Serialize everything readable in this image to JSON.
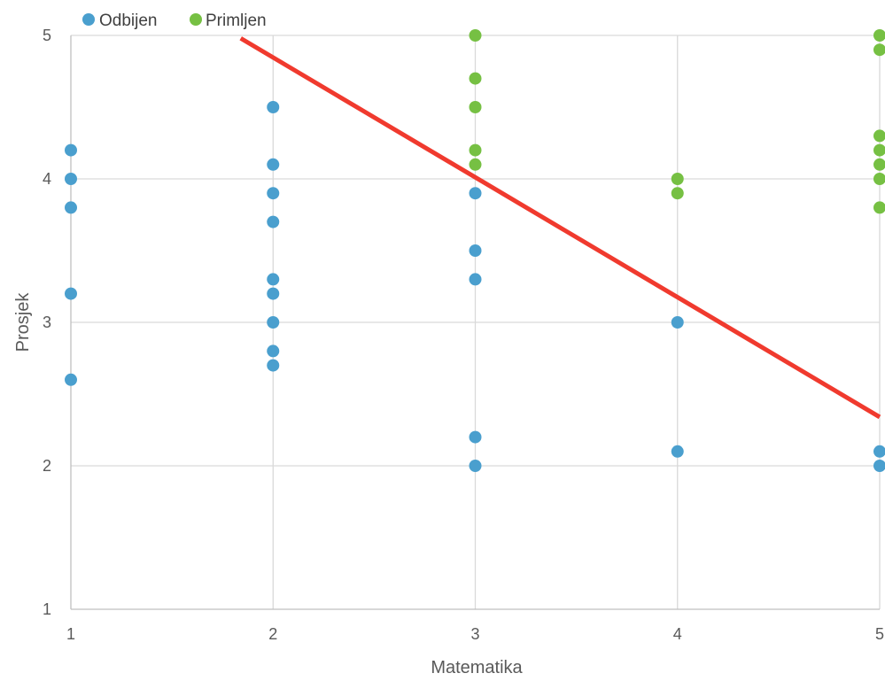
{
  "chart_data": {
    "type": "scatter",
    "xlabel": "Matematika",
    "ylabel": "Prosjek",
    "xlim": [
      1,
      5
    ],
    "ylim": [
      1,
      5
    ],
    "x_ticks": [
      "1",
      "2",
      "3",
      "4",
      "5"
    ],
    "y_ticks": [
      "1",
      "2",
      "3",
      "4",
      "5"
    ],
    "grid": true,
    "legend_position": "top-left",
    "colors": {
      "Odbijen": "#4a9fce",
      "Primljen": "#76c043",
      "line": "#f03a2e"
    },
    "series": [
      {
        "name": "Odbijen",
        "points": [
          [
            1,
            4.2
          ],
          [
            1,
            4.0
          ],
          [
            1,
            3.8
          ],
          [
            1,
            3.2
          ],
          [
            1,
            2.6
          ],
          [
            2,
            4.5
          ],
          [
            2,
            4.1
          ],
          [
            2,
            3.9
          ],
          [
            2,
            3.7
          ],
          [
            2,
            3.3
          ],
          [
            2,
            3.2
          ],
          [
            2,
            3.0
          ],
          [
            2,
            2.8
          ],
          [
            2,
            2.7
          ],
          [
            3,
            3.9
          ],
          [
            3,
            3.5
          ],
          [
            3,
            3.3
          ],
          [
            3,
            2.2
          ],
          [
            3,
            2.0
          ],
          [
            4,
            3.0
          ],
          [
            4,
            2.1
          ],
          [
            5,
            2.1
          ],
          [
            5,
            2.0
          ]
        ]
      },
      {
        "name": "Primljen",
        "points": [
          [
            3,
            5.0
          ],
          [
            3,
            4.7
          ],
          [
            3,
            4.5
          ],
          [
            3,
            4.2
          ],
          [
            3,
            4.1
          ],
          [
            4,
            4.0
          ],
          [
            4,
            3.9
          ],
          [
            5,
            5.0
          ],
          [
            5,
            4.9
          ],
          [
            5,
            4.3
          ],
          [
            5,
            4.2
          ],
          [
            5,
            4.1
          ],
          [
            5,
            4.0
          ],
          [
            5,
            3.8
          ]
        ]
      }
    ],
    "decision_line": {
      "points": [
        [
          1.84,
          4.98
        ],
        [
          5.0,
          2.34
        ]
      ]
    }
  }
}
